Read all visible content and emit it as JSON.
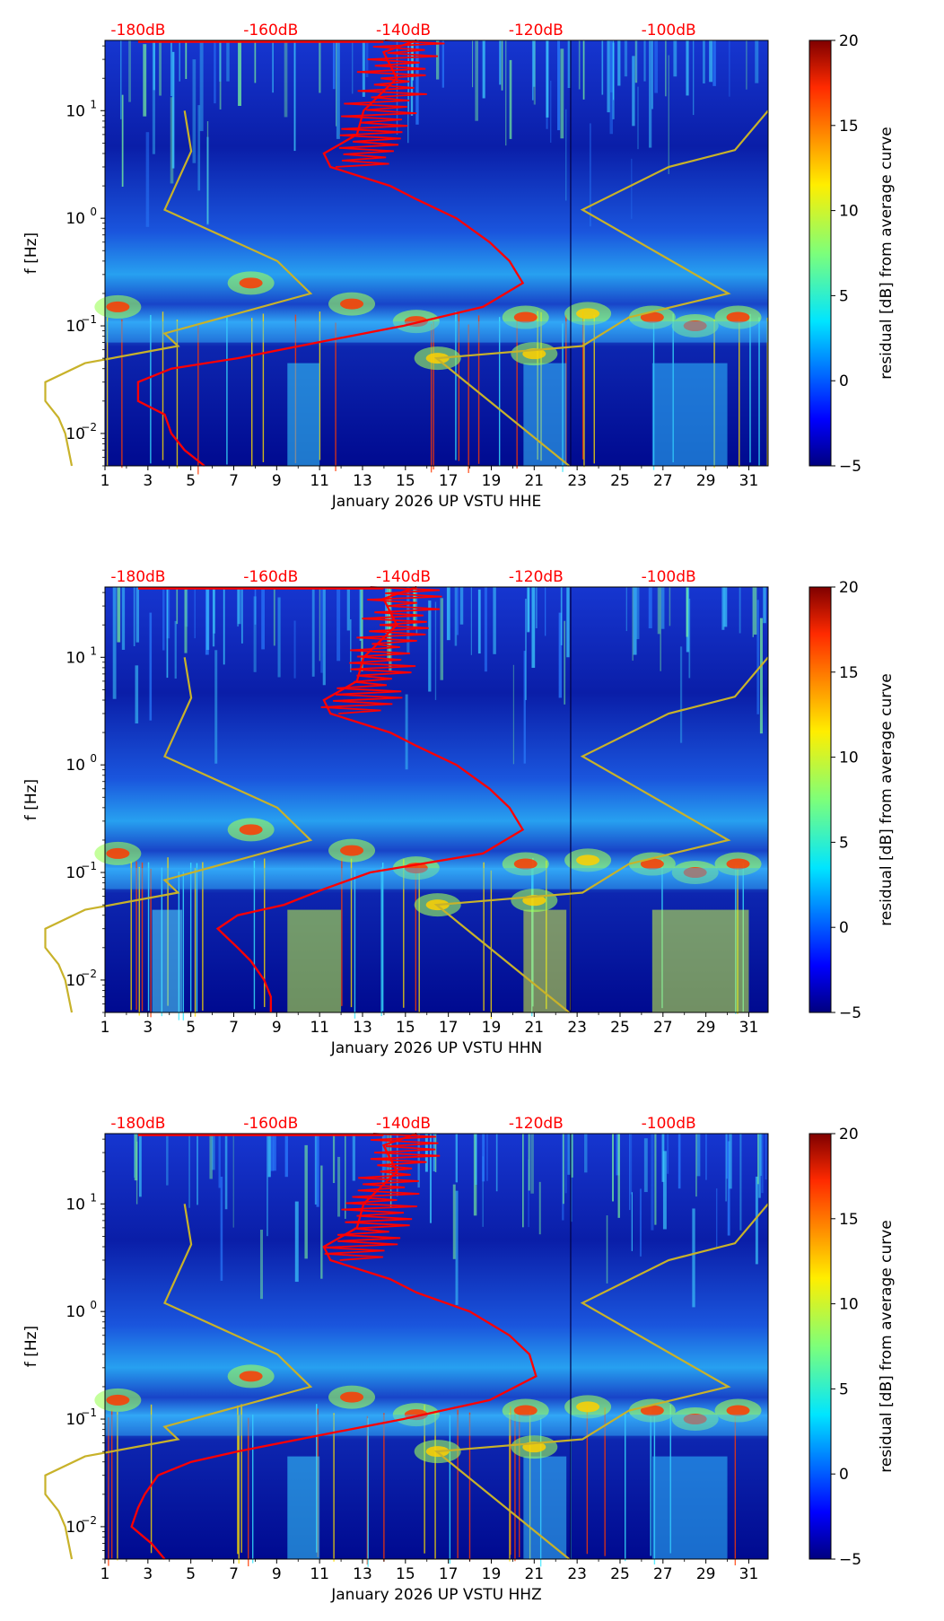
{
  "figure": {
    "colorbar": {
      "label": "residual [dB] from average curve",
      "ticks": [
        -5,
        0,
        5,
        10,
        15,
        20
      ],
      "tick_labels": [
        "−5",
        "0",
        "5",
        "10",
        "15",
        "20"
      ]
    },
    "y_axis": {
      "label": "f [Hz]",
      "ticks": [
        {
          "value": 10,
          "label": "10",
          "sup": "1"
        },
        {
          "value": 1,
          "label": "10",
          "sup": "0"
        },
        {
          "value": 0.1,
          "label": "10",
          "sup": "−1"
        },
        {
          "value": 0.01,
          "label": "10",
          "sup": "−2"
        }
      ]
    },
    "x_axis": {
      "ticks": [
        "1",
        "3",
        "5",
        "7",
        "9",
        "11",
        "13",
        "15",
        "17",
        "19",
        "21",
        "23",
        "25",
        "27",
        "29",
        "31"
      ]
    },
    "top_axis": {
      "ticks": [
        "-180dB",
        "-160dB",
        "-140dB",
        "-120dB",
        "-100dB"
      ],
      "color": "#ff0000"
    },
    "colors": {
      "model_curve": "#c8b22a",
      "psd_curve": "#ff0000",
      "low": "#00007f",
      "high": "#7f0000"
    }
  },
  "chart_data": [
    {
      "type": "heatmap",
      "title": "",
      "xlabel": "January 2026 UP VSTU  HHE",
      "ylabel": "f [Hz]",
      "channel": "HHE",
      "x_range": [
        1,
        31.9
      ],
      "y_range_hz": [
        0.005,
        45
      ],
      "color_range_db": [
        -5,
        20
      ],
      "db_range": [
        -185,
        -85
      ],
      "model_curves_db": {
        "low": [
          [
            10,
            -173
          ],
          [
            4.2,
            -172
          ],
          [
            1.2,
            -176
          ],
          [
            0.4,
            -159
          ],
          [
            0.2,
            -154
          ],
          [
            0.085,
            -176
          ],
          [
            0.065,
            -174
          ],
          [
            0.045,
            -188
          ],
          [
            0.03,
            -194
          ],
          [
            0.02,
            -194
          ],
          [
            0.014,
            -192
          ],
          [
            0.01,
            -191
          ],
          [
            0.005,
            -190
          ]
        ],
        "high": [
          [
            10,
            -85
          ],
          [
            4.3,
            -90
          ],
          [
            3,
            -100
          ],
          [
            1.2,
            -113
          ],
          [
            0.2,
            -91
          ],
          [
            0.12,
            -106
          ],
          [
            0.065,
            -113
          ],
          [
            0.05,
            -135
          ],
          [
            0.005,
            -115
          ]
        ]
      },
      "psd_curve_db": [
        [
          45,
          -138
        ],
        [
          35,
          -143
        ],
        [
          20,
          -141
        ],
        [
          10,
          -146
        ],
        [
          6,
          -147
        ],
        [
          4,
          -152
        ],
        [
          3,
          -151
        ],
        [
          2,
          -142
        ],
        [
          1.5,
          -138
        ],
        [
          1,
          -132
        ],
        [
          0.6,
          -127
        ],
        [
          0.4,
          -124
        ],
        [
          0.25,
          -122
        ],
        [
          0.15,
          -128
        ],
        [
          0.1,
          -140
        ],
        [
          0.07,
          -153
        ],
        [
          0.05,
          -165
        ],
        [
          0.04,
          -175
        ],
        [
          0.03,
          -180
        ],
        [
          0.02,
          -180
        ],
        [
          0.015,
          -176
        ],
        [
          0.01,
          -175
        ],
        [
          0.007,
          -173
        ],
        [
          0.005,
          -170
        ]
      ]
    },
    {
      "type": "heatmap",
      "title": "",
      "xlabel": "January 2026 UP VSTU  HHN",
      "ylabel": "f [Hz]",
      "channel": "HHN",
      "x_range": [
        1,
        31.9
      ],
      "y_range_hz": [
        0.005,
        45
      ],
      "color_range_db": [
        -5,
        20
      ],
      "db_range": [
        -185,
        -85
      ],
      "model_curves_db": {
        "low": [
          [
            10,
            -173
          ],
          [
            4.2,
            -172
          ],
          [
            1.2,
            -176
          ],
          [
            0.4,
            -159
          ],
          [
            0.2,
            -154
          ],
          [
            0.085,
            -176
          ],
          [
            0.065,
            -174
          ],
          [
            0.045,
            -188
          ],
          [
            0.03,
            -194
          ],
          [
            0.02,
            -194
          ],
          [
            0.014,
            -192
          ],
          [
            0.01,
            -191
          ],
          [
            0.005,
            -190
          ]
        ],
        "high": [
          [
            10,
            -85
          ],
          [
            4.3,
            -90
          ],
          [
            3,
            -100
          ],
          [
            1.2,
            -113
          ],
          [
            0.2,
            -91
          ],
          [
            0.12,
            -106
          ],
          [
            0.065,
            -113
          ],
          [
            0.05,
            -135
          ],
          [
            0.005,
            -115
          ]
        ]
      },
      "psd_curve_db": [
        [
          45,
          -138
        ],
        [
          35,
          -143
        ],
        [
          20,
          -141
        ],
        [
          10,
          -146
        ],
        [
          6,
          -147
        ],
        [
          4,
          -152
        ],
        [
          3,
          -151
        ],
        [
          2,
          -142
        ],
        [
          1.5,
          -138
        ],
        [
          1,
          -132
        ],
        [
          0.6,
          -127
        ],
        [
          0.4,
          -124
        ],
        [
          0.25,
          -122
        ],
        [
          0.15,
          -128
        ],
        [
          0.1,
          -145
        ],
        [
          0.07,
          -152
        ],
        [
          0.05,
          -158
        ],
        [
          0.04,
          -165
        ],
        [
          0.03,
          -168
        ],
        [
          0.02,
          -165
        ],
        [
          0.015,
          -163
        ],
        [
          0.01,
          -161
        ],
        [
          0.007,
          -160
        ],
        [
          0.005,
          -160
        ]
      ]
    },
    {
      "type": "heatmap",
      "title": "",
      "xlabel": "January 2026 UP VSTU  HHZ",
      "ylabel": "f [Hz]",
      "channel": "HHZ",
      "x_range": [
        1,
        31.9
      ],
      "y_range_hz": [
        0.005,
        45
      ],
      "color_range_db": [
        -5,
        20
      ],
      "db_range": [
        -185,
        -85
      ],
      "model_curves_db": {
        "low": [
          [
            10,
            -173
          ],
          [
            4.2,
            -172
          ],
          [
            1.2,
            -176
          ],
          [
            0.4,
            -159
          ],
          [
            0.2,
            -154
          ],
          [
            0.085,
            -176
          ],
          [
            0.065,
            -174
          ],
          [
            0.045,
            -188
          ],
          [
            0.03,
            -194
          ],
          [
            0.02,
            -194
          ],
          [
            0.014,
            -192
          ],
          [
            0.01,
            -191
          ],
          [
            0.005,
            -190
          ]
        ],
        "high": [
          [
            10,
            -85
          ],
          [
            4.3,
            -90
          ],
          [
            3,
            -100
          ],
          [
            1.2,
            -113
          ],
          [
            0.2,
            -91
          ],
          [
            0.12,
            -106
          ],
          [
            0.065,
            -113
          ],
          [
            0.05,
            -135
          ],
          [
            0.005,
            -115
          ]
        ]
      },
      "psd_curve_db": [
        [
          45,
          -138
        ],
        [
          35,
          -143
        ],
        [
          20,
          -141
        ],
        [
          10,
          -146
        ],
        [
          6,
          -147
        ],
        [
          4,
          -152
        ],
        [
          3,
          -151
        ],
        [
          2,
          -142
        ],
        [
          1.5,
          -138
        ],
        [
          1,
          -130
        ],
        [
          0.6,
          -124
        ],
        [
          0.4,
          -121
        ],
        [
          0.25,
          -120
        ],
        [
          0.15,
          -127
        ],
        [
          0.1,
          -140
        ],
        [
          0.07,
          -153
        ],
        [
          0.05,
          -165
        ],
        [
          0.04,
          -172
        ],
        [
          0.03,
          -177
        ],
        [
          0.02,
          -179
        ],
        [
          0.015,
          -180
        ],
        [
          0.01,
          -181
        ],
        [
          0.007,
          -178
        ],
        [
          0.005,
          -176
        ]
      ]
    }
  ]
}
